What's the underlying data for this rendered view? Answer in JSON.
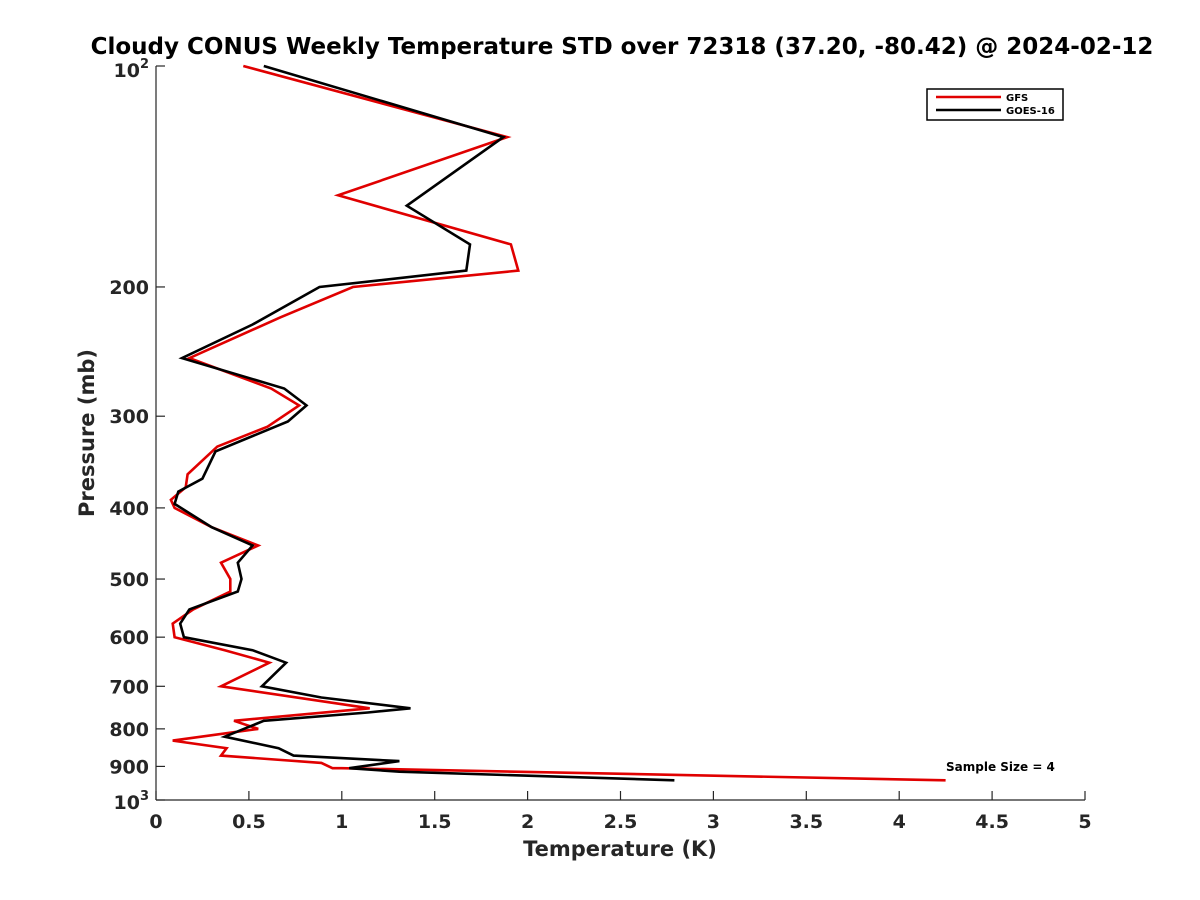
{
  "chart_data": {
    "type": "line",
    "title": "Cloudy CONUS Weekly Temperature STD over 72318 (37.20, -80.42) @ 2024-02-12",
    "xlabel": "Temperature (K)",
    "ylabel": "Pressure (mb)",
    "xlim": [
      0,
      5
    ],
    "ylim": [
      100,
      1000
    ],
    "y_scale": "log",
    "y_reversed": true,
    "grid": false,
    "legend_position": "top-right",
    "x_ticks": [
      "0",
      "0.5",
      "1",
      "1.5",
      "2",
      "2.5",
      "3",
      "3.5",
      "4",
      "4.5",
      "5"
    ],
    "y_ticks": [
      {
        "value": 100,
        "base": "10",
        "exp": "2"
      },
      {
        "value": 200,
        "label": "200"
      },
      {
        "value": 300,
        "label": "300"
      },
      {
        "value": 400,
        "label": "400"
      },
      {
        "value": 500,
        "label": "500"
      },
      {
        "value": 600,
        "label": "600"
      },
      {
        "value": 700,
        "label": "700"
      },
      {
        "value": 800,
        "label": "800"
      },
      {
        "value": 900,
        "label": "900"
      },
      {
        "value": 1000,
        "base": "10",
        "exp": "3"
      }
    ],
    "annotation": "Sample Size = 4",
    "series": [
      {
        "name": "GFS",
        "color": "#e00000",
        "points": [
          [
            0.47,
            100
          ],
          [
            1.89,
            125
          ],
          [
            0.98,
            150
          ],
          [
            1.91,
            175
          ],
          [
            1.95,
            190
          ],
          [
            1.06,
            200
          ],
          [
            0.67,
            220
          ],
          [
            0.18,
            250
          ],
          [
            0.62,
            275
          ],
          [
            0.77,
            290
          ],
          [
            0.6,
            310
          ],
          [
            0.33,
            330
          ],
          [
            0.17,
            360
          ],
          [
            0.16,
            375
          ],
          [
            0.08,
            390
          ],
          [
            0.1,
            400
          ],
          [
            0.3,
            425
          ],
          [
            0.55,
            450
          ],
          [
            0.35,
            475
          ],
          [
            0.4,
            500
          ],
          [
            0.4,
            520
          ],
          [
            0.2,
            550
          ],
          [
            0.09,
            575
          ],
          [
            0.1,
            600
          ],
          [
            0.37,
            625
          ],
          [
            0.61,
            650
          ],
          [
            0.35,
            700
          ],
          [
            1.15,
            750
          ],
          [
            0.42,
            780
          ],
          [
            0.55,
            800
          ],
          [
            0.09,
            830
          ],
          [
            0.38,
            850
          ],
          [
            0.35,
            870
          ],
          [
            0.89,
            890
          ],
          [
            0.95,
            905
          ],
          [
            1.0,
            905
          ],
          [
            4.25,
            940
          ]
        ]
      },
      {
        "name": "GOES-16",
        "color": "#000000",
        "points": [
          [
            0.58,
            100
          ],
          [
            1.87,
            125
          ],
          [
            1.35,
            155
          ],
          [
            1.69,
            175
          ],
          [
            1.67,
            190
          ],
          [
            0.88,
            200
          ],
          [
            0.52,
            225
          ],
          [
            0.14,
            250
          ],
          [
            0.69,
            275
          ],
          [
            0.81,
            290
          ],
          [
            0.71,
            305
          ],
          [
            0.32,
            335
          ],
          [
            0.25,
            365
          ],
          [
            0.12,
            380
          ],
          [
            0.1,
            395
          ],
          [
            0.3,
            425
          ],
          [
            0.52,
            450
          ],
          [
            0.44,
            475
          ],
          [
            0.46,
            500
          ],
          [
            0.44,
            520
          ],
          [
            0.18,
            550
          ],
          [
            0.13,
            575
          ],
          [
            0.15,
            600
          ],
          [
            0.52,
            625
          ],
          [
            0.7,
            650
          ],
          [
            0.57,
            700
          ],
          [
            0.89,
            725
          ],
          [
            1.37,
            750
          ],
          [
            1.14,
            760
          ],
          [
            0.58,
            780
          ],
          [
            0.37,
            820
          ],
          [
            0.66,
            850
          ],
          [
            0.74,
            870
          ],
          [
            1.31,
            885
          ],
          [
            1.04,
            905
          ],
          [
            1.31,
            915
          ],
          [
            2.79,
            940
          ]
        ]
      }
    ]
  }
}
